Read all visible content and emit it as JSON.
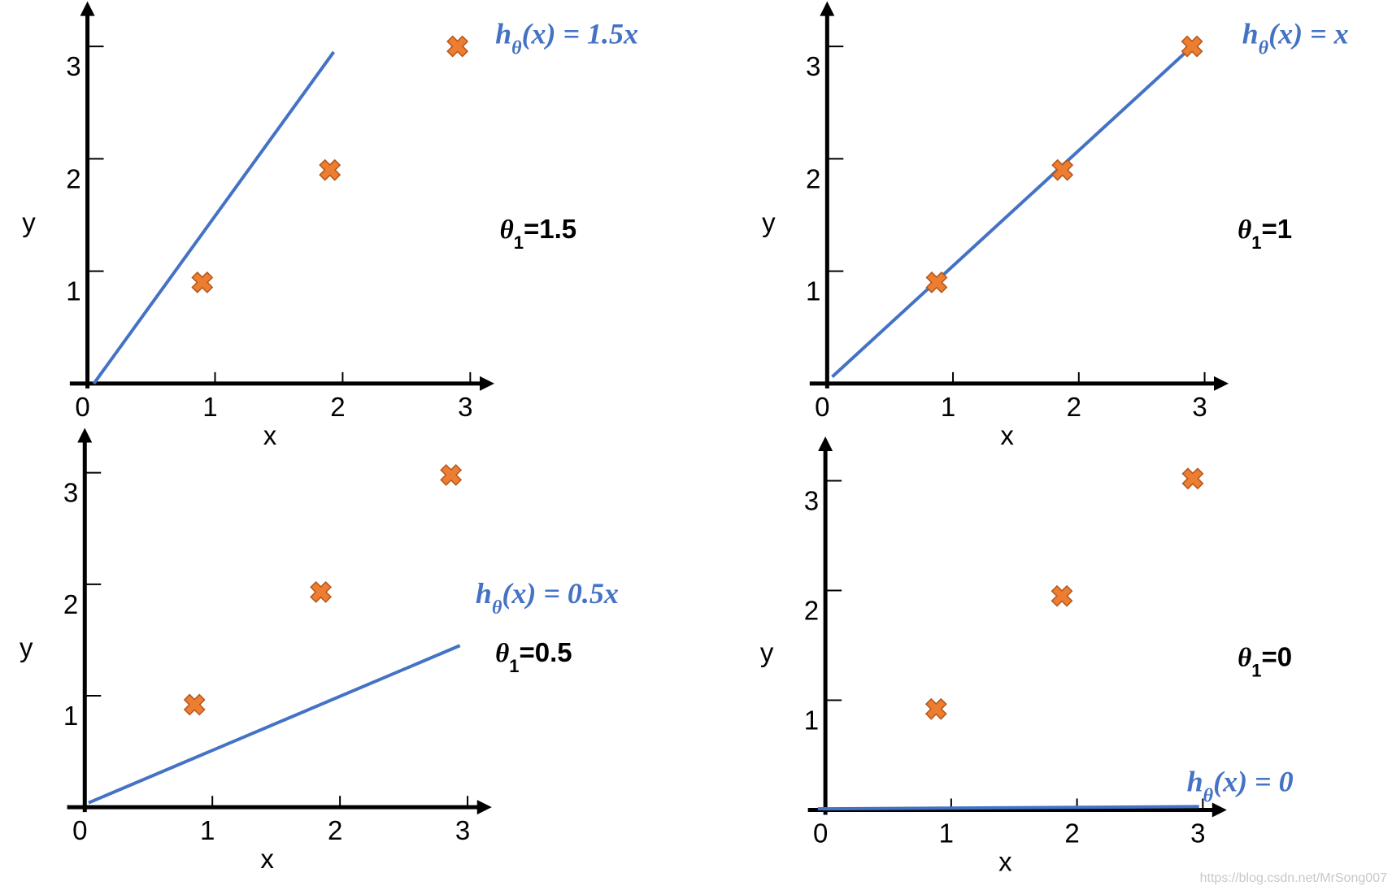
{
  "chart_data": [
    {
      "type": "scatter",
      "x": [
        0.9,
        1.9,
        2.9
      ],
      "values": [
        0.9,
        1.9,
        3.0
      ],
      "color": "#ed7d31",
      "line": {
        "x": [
          0.05,
          1.93
        ],
        "values": [
          0.0,
          2.95
        ],
        "color": "#4472c4"
      },
      "formula": [
        "h",
        "θ",
        "(x) = 1.5x"
      ],
      "parameter": [
        "θ",
        "1",
        "=1.5"
      ],
      "xlabel": "x",
      "ylabel": "y",
      "xlim": [
        -0.1,
        3.1
      ],
      "ylim": [
        0,
        3.3
      ],
      "xticks": [
        0,
        1,
        2,
        3
      ],
      "yticks": [
        1,
        2,
        3
      ]
    },
    {
      "type": "scatter",
      "x": [
        0.87,
        1.87,
        2.9
      ],
      "values": [
        0.9,
        1.9,
        3.0
      ],
      "color": "#ed7d31",
      "line": {
        "x": [
          0.04,
          2.93
        ],
        "values": [
          0.06,
          3.03
        ],
        "color": "#4472c4"
      },
      "formula": [
        "h",
        "θ",
        "(x) = x"
      ],
      "parameter": [
        "θ",
        "1",
        "=1"
      ],
      "xlabel": "x",
      "ylabel": "y",
      "xlim": [
        -0.1,
        3.1
      ],
      "ylim": [
        0,
        3.3
      ],
      "xticks": [
        0,
        1,
        2,
        3
      ],
      "yticks": [
        1,
        2,
        3
      ]
    },
    {
      "type": "scatter",
      "x": [
        0.86,
        1.85,
        2.87
      ],
      "values": [
        0.92,
        1.93,
        2.98
      ],
      "color": "#ed7d31",
      "line": {
        "x": [
          0.03,
          2.94
        ],
        "values": [
          0.04,
          1.45
        ],
        "color": "#4472c4"
      },
      "formula": [
        "h",
        "θ",
        "(x) = 0.5x"
      ],
      "parameter": [
        "θ",
        "1",
        "=0.5"
      ],
      "xlabel": "x",
      "ylabel": "y",
      "xlim": [
        -0.1,
        3.1
      ],
      "ylim": [
        0,
        3.3
      ],
      "xticks": [
        0,
        1,
        2,
        3
      ],
      "yticks": [
        1,
        2,
        3
      ]
    },
    {
      "type": "scatter",
      "x": [
        0.88,
        1.88,
        2.92
      ],
      "values": [
        0.92,
        1.95,
        3.02
      ],
      "color": "#ed7d31",
      "line": {
        "x": [
          -0.06,
          2.97
        ],
        "values": [
          0.01,
          0.03
        ],
        "color": "#4472c4"
      },
      "formula": [
        "h",
        "θ",
        "(x) = 0"
      ],
      "parameter": [
        "θ",
        "1",
        "=0"
      ],
      "xlabel": "x",
      "ylabel": "y",
      "xlim": [
        -0.1,
        3.1
      ],
      "ylim": [
        0,
        3.3
      ],
      "xticks": [
        0,
        1,
        2,
        3
      ],
      "yticks": [
        1,
        2,
        3
      ]
    }
  ],
  "watermark": "https://blog.csdn.net/MrSong007"
}
